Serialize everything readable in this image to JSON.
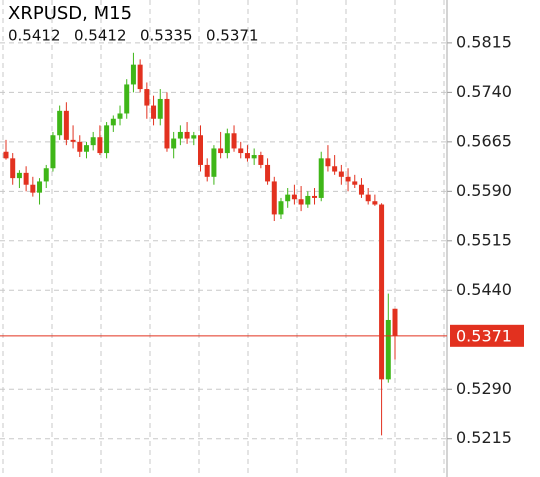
{
  "chart_data": {
    "type": "candlestick",
    "title": "XRPUSD, M15",
    "ohlc_header": [
      0.5412,
      0.5412,
      0.5335,
      0.5371
    ],
    "current_price": 0.5371,
    "up_color": "#3fb618",
    "down_color": "#e2311f",
    "price_line_color": "#e2311f",
    "grid": true,
    "ylim": [
      0.5157,
      0.588
    ],
    "yticks": [
      0.5815,
      {
        "value": 0.574,
        "label": "0.5740"
      },
      0.5665,
      {
        "value": 0.559,
        "label": "0.5590"
      },
      0.5515,
      {
        "value": 0.544,
        "label": "0.5440"
      },
      {
        "value": 0.529,
        "label": "0.5290"
      },
      0.5215
    ],
    "open": [
      0.565,
      0.564,
      0.561,
      0.5618,
      0.56,
      0.5588,
      0.5605,
      0.5625,
      0.5675,
      0.5712,
      0.5668,
      0.5665,
      0.565,
      0.566,
      0.5672,
      0.5648,
      0.569,
      0.57,
      0.5708,
      0.5752,
      0.5782,
      0.5745,
      0.572,
      0.57,
      0.573,
      0.5655,
      0.567,
      0.568,
      0.567,
      0.5675,
      0.563,
      0.5612,
      0.5655,
      0.5648,
      0.5678,
      0.5655,
      0.5648,
      0.564,
      0.5645,
      0.563,
      0.5605,
      0.5555,
      0.5575,
      0.5585,
      0.5578,
      0.557,
      0.5583,
      0.558,
      0.564,
      0.5628,
      0.562,
      0.5612,
      0.5605,
      0.56,
      0.5585,
      0.5575,
      0.557,
      0.5305,
      0.5412
    ],
    "high": [
      0.5668,
      0.5648,
      0.5622,
      0.5628,
      0.5612,
      0.561,
      0.563,
      0.568,
      0.572,
      0.5725,
      0.569,
      0.5675,
      0.5665,
      0.568,
      0.569,
      0.5695,
      0.5705,
      0.572,
      0.576,
      0.58,
      0.579,
      0.5755,
      0.5735,
      0.5745,
      0.574,
      0.568,
      0.569,
      0.5695,
      0.568,
      0.569,
      0.564,
      0.566,
      0.568,
      0.5685,
      0.569,
      0.5665,
      0.566,
      0.5655,
      0.565,
      0.564,
      0.5612,
      0.558,
      0.5595,
      0.56,
      0.5598,
      0.559,
      0.5595,
      0.565,
      0.566,
      0.5645,
      0.563,
      0.5625,
      0.5615,
      0.561,
      0.5595,
      0.5585,
      0.5572,
      0.5435,
      0.5412
    ],
    "low": [
      0.5638,
      0.56,
      0.5595,
      0.559,
      0.5582,
      0.557,
      0.5595,
      0.562,
      0.5668,
      0.566,
      0.5655,
      0.5642,
      0.564,
      0.5652,
      0.5645,
      0.564,
      0.568,
      0.569,
      0.57,
      0.574,
      0.574,
      0.57,
      0.569,
      0.569,
      0.565,
      0.564,
      0.566,
      0.5662,
      0.566,
      0.562,
      0.5605,
      0.56,
      0.564,
      0.564,
      0.565,
      0.564,
      0.5635,
      0.563,
      0.5625,
      0.56,
      0.5545,
      0.5548,
      0.5565,
      0.557,
      0.556,
      0.5565,
      0.557,
      0.5575,
      0.562,
      0.5615,
      0.56,
      0.559,
      0.5595,
      0.558,
      0.557,
      0.5568,
      0.522,
      0.53,
      0.5335
    ],
    "close": [
      0.564,
      0.561,
      0.5618,
      0.56,
      0.5588,
      0.5605,
      0.5625,
      0.5675,
      0.5712,
      0.5668,
      0.5665,
      0.565,
      0.566,
      0.5672,
      0.5648,
      0.569,
      0.57,
      0.5708,
      0.5752,
      0.5782,
      0.5745,
      0.572,
      0.57,
      0.573,
      0.5655,
      0.567,
      0.568,
      0.567,
      0.5675,
      0.563,
      0.5612,
      0.5655,
      0.5648,
      0.5678,
      0.5655,
      0.5648,
      0.564,
      0.5645,
      0.563,
      0.5605,
      0.5555,
      0.5575,
      0.5585,
      0.5578,
      0.557,
      0.5583,
      0.558,
      0.564,
      0.5628,
      0.562,
      0.5612,
      0.5605,
      0.56,
      0.5585,
      0.5575,
      0.557,
      0.5305,
      0.5395,
      0.5371
    ]
  }
}
